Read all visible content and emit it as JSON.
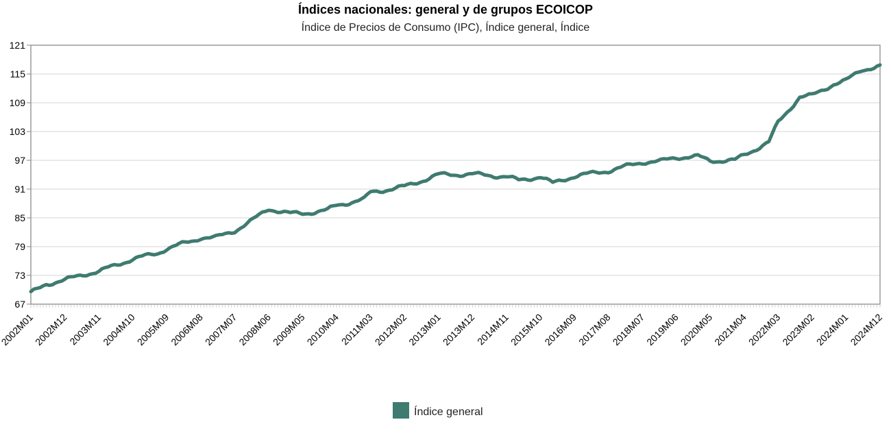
{
  "chart_data": {
    "type": "line",
    "title": "Índices nacionales: general y de grupos ECOICOP",
    "subtitle": "Índice de Precios de Consumo (IPC), Índice general, Índice",
    "xlabel": "",
    "ylabel": "",
    "ylim": [
      67,
      121
    ],
    "yticks": [
      67,
      73,
      79,
      85,
      91,
      97,
      103,
      109,
      115,
      121
    ],
    "xticks": [
      "2002M01",
      "2002M12",
      "2003M11",
      "2004M10",
      "2005M09",
      "2006M08",
      "2007M07",
      "2008M06",
      "2009M05",
      "2010M04",
      "2011M03",
      "2012M02",
      "2013M01",
      "2013M12",
      "2014M11",
      "2015M10",
      "2016M09",
      "2017M08",
      "2018M07",
      "2019M06",
      "2020M05",
      "2021M04",
      "2022M03",
      "2023M02",
      "2024M01",
      "2024M12"
    ],
    "grid": true,
    "legend": "bottom",
    "color": "#3f7b70",
    "series": [
      {
        "name": "Índice general",
        "anchors": [
          [
            "2002M01",
            69.3
          ],
          [
            "2002M06",
            71.2
          ],
          [
            "2002M12",
            72.0
          ],
          [
            "2003M06",
            73.2
          ],
          [
            "2003M11",
            73.8
          ],
          [
            "2004M06",
            75.5
          ],
          [
            "2004M10",
            76.4
          ],
          [
            "2005M06",
            77.6
          ],
          [
            "2005M09",
            78.6
          ],
          [
            "2006M06",
            80.3
          ],
          [
            "2006M08",
            80.9
          ],
          [
            "2007M01",
            80.9
          ],
          [
            "2007M07",
            82.3
          ],
          [
            "2008M01",
            84.6
          ],
          [
            "2008M06",
            86.9
          ],
          [
            "2009M01",
            85.9
          ],
          [
            "2009M05",
            85.9
          ],
          [
            "2010M01",
            86.6
          ],
          [
            "2010M04",
            87.6
          ],
          [
            "2011M01",
            88.9
          ],
          [
            "2011M03",
            90.3
          ],
          [
            "2012M02",
            91.5
          ],
          [
            "2012M10",
            93.3
          ],
          [
            "2013M01",
            94.0
          ],
          [
            "2013M12",
            94.1
          ],
          [
            "2014M11",
            93.6
          ],
          [
            "2015M03",
            92.8
          ],
          [
            "2015M10",
            93.6
          ],
          [
            "2016M02",
            92.2
          ],
          [
            "2016M09",
            93.7
          ],
          [
            "2017M08",
            94.8
          ],
          [
            "2018M07",
            96.6
          ],
          [
            "2019M01",
            96.8
          ],
          [
            "2019M06",
            97.6
          ],
          [
            "2020M01",
            97.8
          ],
          [
            "2020M05",
            96.9
          ],
          [
            "2021M01",
            97.0
          ],
          [
            "2021M04",
            98.1
          ],
          [
            "2021M12",
            100.8
          ],
          [
            "2022M03",
            104.9
          ],
          [
            "2022M10",
            110.2
          ],
          [
            "2023M02",
            110.5
          ],
          [
            "2023M09",
            112.9
          ],
          [
            "2024M01",
            113.6
          ],
          [
            "2024M06",
            115.9
          ],
          [
            "2024M12",
            116.6
          ]
        ]
      }
    ]
  }
}
